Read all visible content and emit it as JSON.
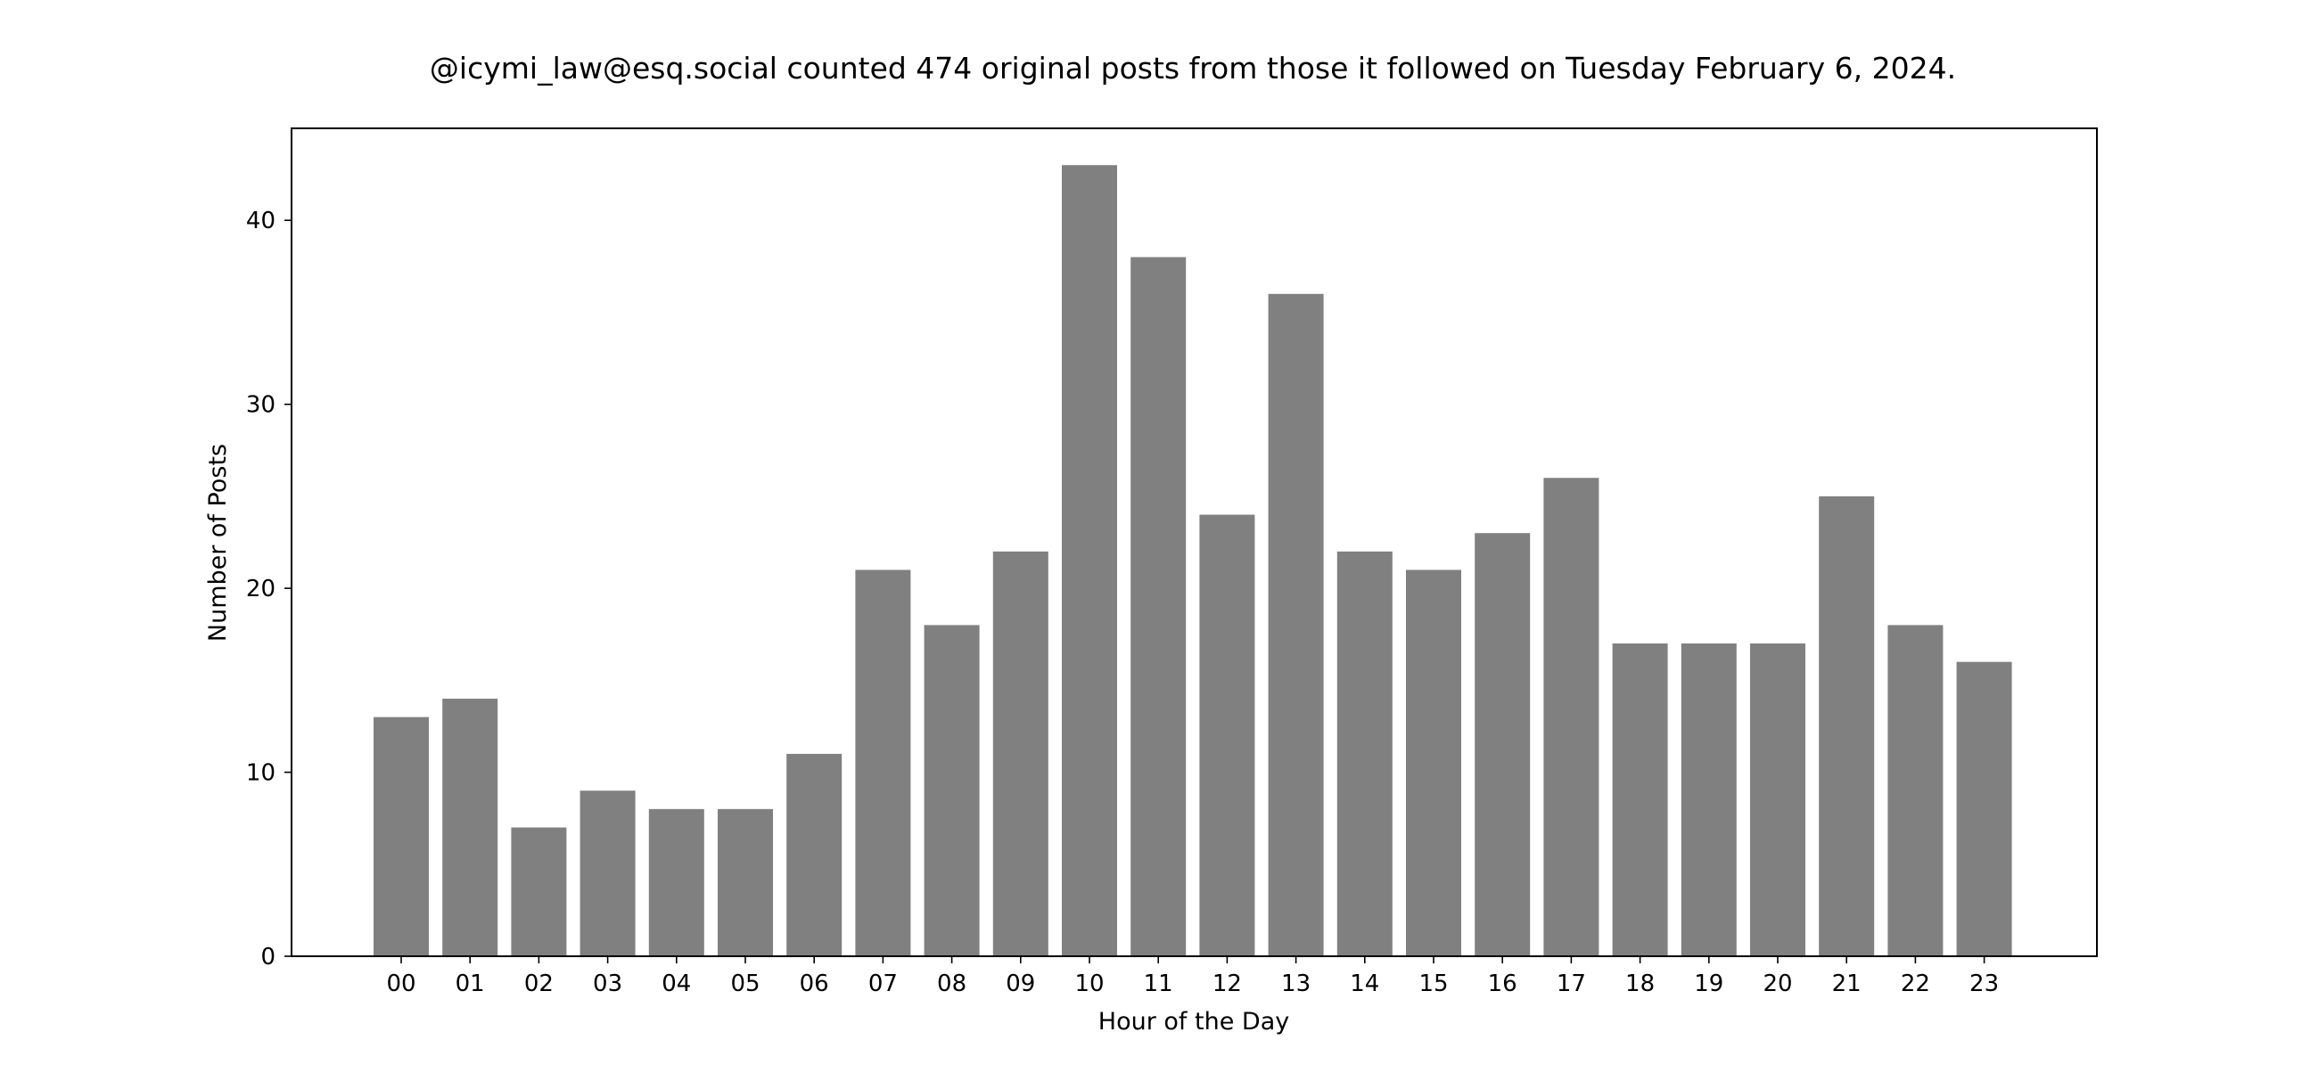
{
  "chart_data": {
    "type": "bar",
    "title": "@icymi_law@esq.social counted 474 original posts from those it followed on Tuesday February 6, 2024.",
    "xlabel": "Hour of the Day",
    "ylabel": "Number of Posts",
    "categories": [
      "00",
      "01",
      "02",
      "03",
      "04",
      "05",
      "06",
      "07",
      "08",
      "09",
      "10",
      "11",
      "12",
      "13",
      "14",
      "15",
      "16",
      "17",
      "18",
      "19",
      "20",
      "21",
      "22",
      "23"
    ],
    "values": [
      13,
      14,
      7,
      9,
      8,
      8,
      11,
      21,
      18,
      22,
      43,
      38,
      24,
      36,
      22,
      21,
      23,
      26,
      17,
      17,
      17,
      25,
      18,
      16
    ],
    "ylim": [
      0,
      45
    ],
    "yticks": [
      0,
      10,
      20,
      30,
      40
    ],
    "bar_color": "#808080",
    "grid": false,
    "legend": "none"
  }
}
